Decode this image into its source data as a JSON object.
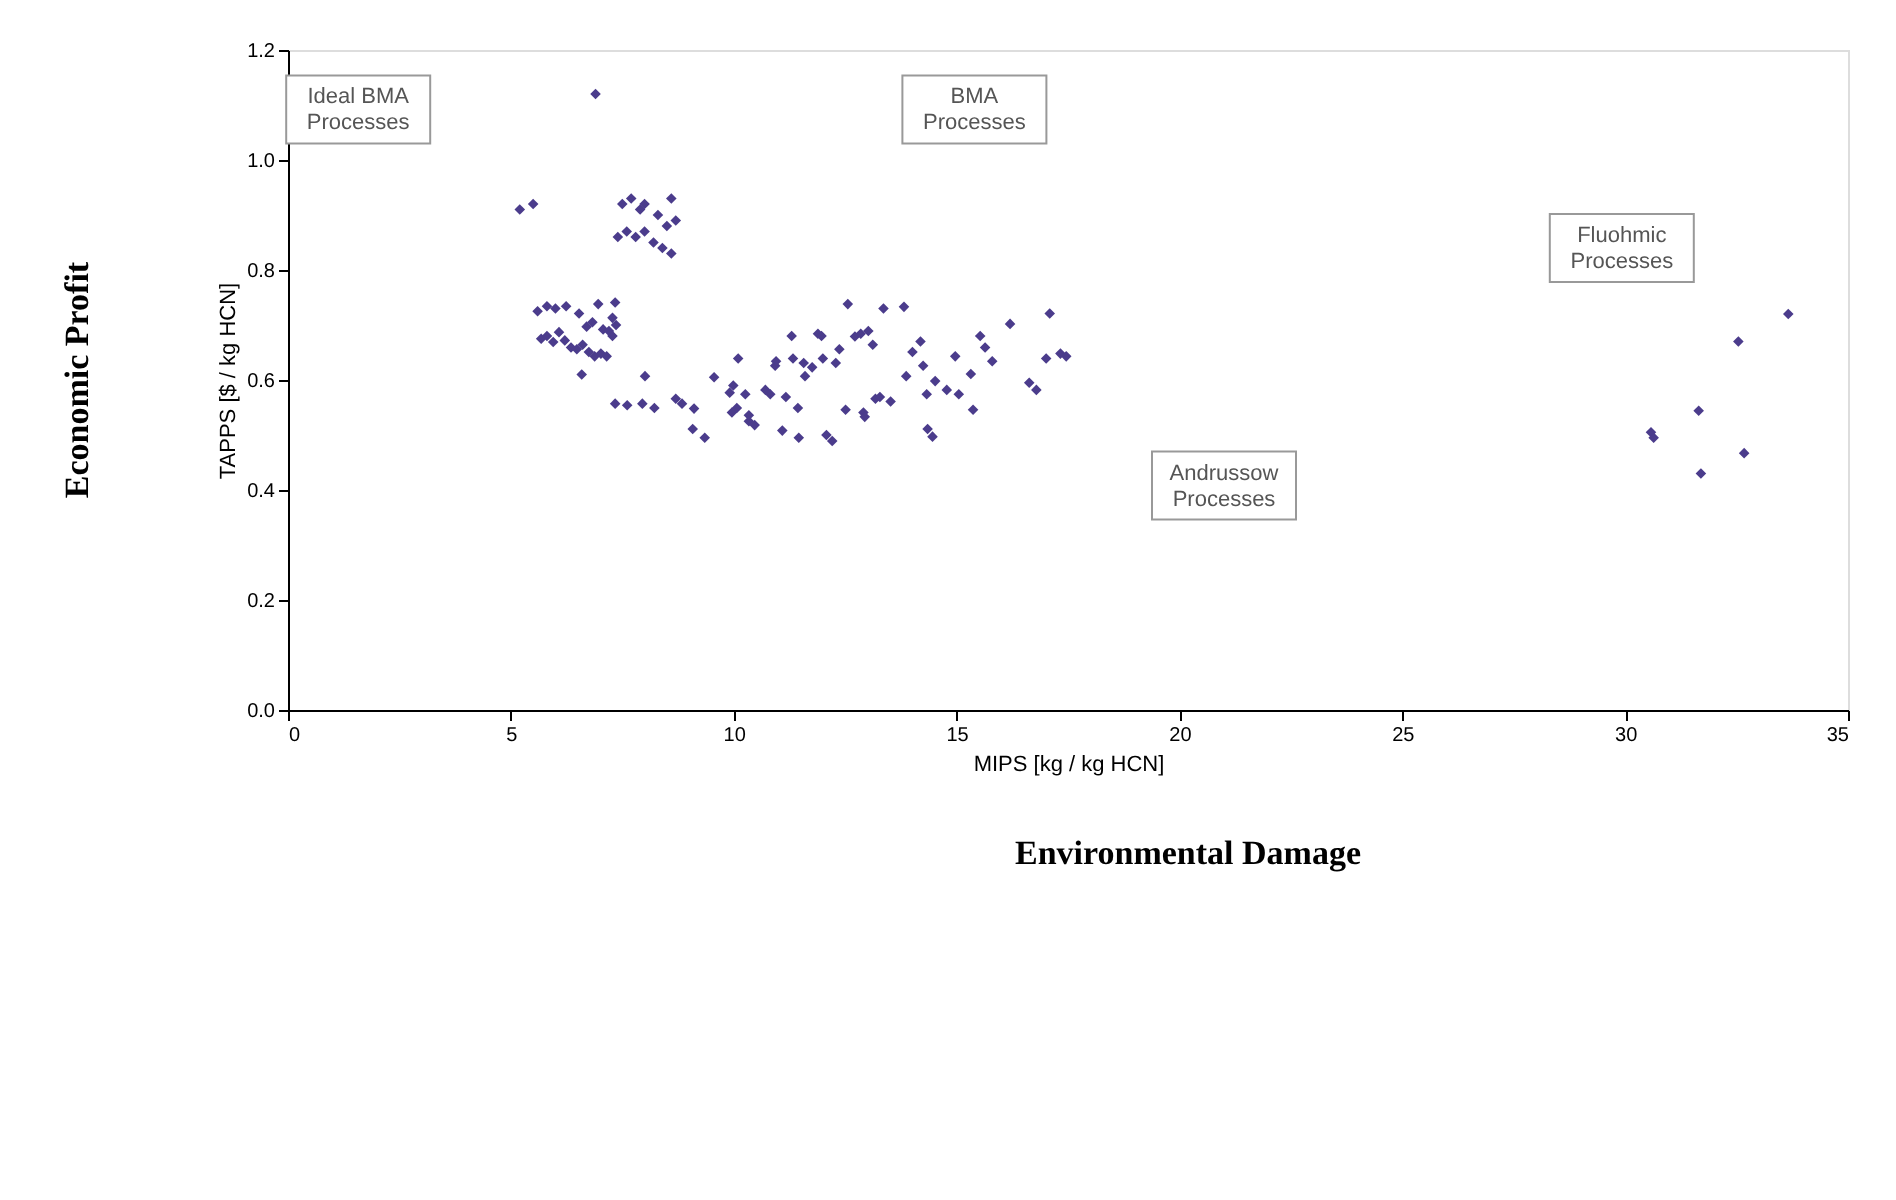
{
  "chart_data": {
    "type": "scatter",
    "xlabel": "MIPS [kg / kg HCN]",
    "ylabel": "TAPPS [$ / kg HCN]",
    "xlim": [
      0,
      35
    ],
    "xticks": [
      0,
      5,
      10,
      15,
      20,
      25,
      30,
      35
    ],
    "ylim": [
      0,
      1.2
    ],
    "yticks": [
      {
        "value": 0,
        "label": "0.0"
      },
      {
        "value": 0.2,
        "label": "0.2"
      },
      {
        "value": 0.4,
        "label": "0.4"
      },
      {
        "value": 0.6,
        "label": "0.6"
      },
      {
        "value": 0.8,
        "label": "0.8"
      },
      {
        "value": 1.0,
        "label": "1.0"
      },
      {
        "value": 1.2,
        "label": "1.2"
      }
    ],
    "marker": "diamond",
    "grid": false,
    "legend": false,
    "annotations": [
      "Ideal BMA\nProcesses",
      "BMA\nProcesses",
      "Andrussow\nProcesses",
      "Fluohmic\nProcesses",
      "Economic Profit",
      "Environmental Damage"
    ],
    "series": [
      {
        "color": "#4b3c8c",
        "x": [
          5.2,
          5.5,
          6.9,
          7.4,
          7.5,
          7.7,
          7.9,
          8.0,
          8.3,
          8.6,
          7.6,
          7.8,
          8.0,
          8.2,
          8.4,
          8.6,
          8.5,
          8.7,
          5.6,
          5.81,
          6.0,
          6.24,
          6.53,
          6.96,
          7.34,
          5.68,
          5.81,
          5.95,
          6.08,
          6.21,
          6.35,
          6.48,
          6.61,
          6.75,
          6.88,
          7.02,
          7.15,
          6.7,
          6.83,
          7.07,
          7.2,
          7.28,
          7.36,
          7.28,
          6.59,
          7.34,
          7.61,
          7.95,
          8.22,
          8.01,
          8.7,
          8.84,
          9.11,
          9.08,
          9.35,
          9.56,
          9.99,
          9.96,
          10.07,
          10.1,
          9.91,
          10.26,
          10.34,
          10.34,
          10.47,
          10.71,
          10.82,
          10.93,
          10.95,
          11.17,
          11.09,
          11.46,
          11.3,
          11.33,
          11.44,
          11.57,
          11.6,
          11.76,
          11.89,
          11.97,
          12.0,
          12.08,
          12.21,
          12.29,
          12.37,
          12.51,
          12.56,
          12.72,
          12.85,
          12.91,
          12.94,
          13.02,
          13.12,
          13.18,
          13.28,
          13.36,
          13.52,
          13.82,
          13.87,
          14.01,
          14.19,
          14.33,
          14.35,
          14.46,
          14.25,
          14.52,
          14.78,
          14.97,
          15.05,
          15.37,
          15.53,
          15.64,
          15.8,
          16.2,
          15.32,
          16.63,
          16.79,
          17.01,
          17.09,
          17.33,
          17.46,
          30.58,
          30.64,
          31.65,
          31.7,
          32.54,
          32.67,
          33.66
        ],
        "values": [
          0.91,
          0.92,
          1.12,
          0.86,
          0.92,
          0.93,
          0.91,
          0.92,
          0.9,
          0.93,
          0.87,
          0.86,
          0.87,
          0.85,
          0.84,
          0.83,
          0.88,
          0.89,
          0.725,
          0.734,
          0.73,
          0.734,
          0.721,
          0.738,
          0.741,
          0.675,
          0.68,
          0.669,
          0.687,
          0.672,
          0.659,
          0.656,
          0.664,
          0.651,
          0.643,
          0.648,
          0.643,
          0.697,
          0.705,
          0.692,
          0.689,
          0.713,
          0.7,
          0.68,
          0.61,
          0.557,
          0.554,
          0.557,
          0.549,
          0.607,
          0.566,
          0.557,
          0.548,
          0.511,
          0.495,
          0.605,
          0.59,
          0.541,
          0.549,
          0.639,
          0.577,
          0.574,
          0.525,
          0.536,
          0.518,
          0.582,
          0.574,
          0.626,
          0.634,
          0.569,
          0.508,
          0.495,
          0.68,
          0.639,
          0.549,
          0.631,
          0.607,
          0.623,
          0.684,
          0.68,
          0.639,
          0.5,
          0.489,
          0.631,
          0.656,
          0.546,
          0.738,
          0.679,
          0.684,
          0.541,
          0.533,
          0.689,
          0.664,
          0.566,
          0.569,
          0.73,
          0.561,
          0.733,
          0.607,
          0.651,
          0.67,
          0.574,
          0.511,
          0.497,
          0.626,
          0.598,
          0.582,
          0.643,
          0.574,
          0.546,
          0.68,
          0.659,
          0.634,
          0.702,
          0.611,
          0.595,
          0.582,
          0.639,
          0.721,
          0.648,
          0.643,
          0.505,
          0.495,
          0.544,
          0.43,
          0.67,
          0.467,
          0.72
        ]
      }
    ]
  }
}
